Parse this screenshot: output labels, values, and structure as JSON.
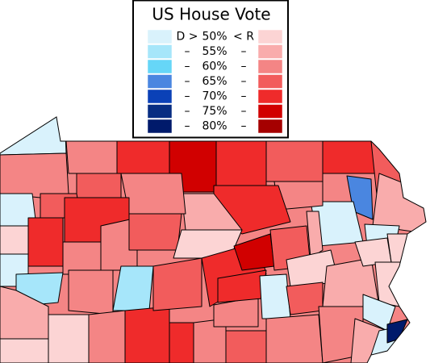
{
  "legend": {
    "title": "US House Vote",
    "rows": [
      {
        "left": "D >",
        "label": "50%",
        "right": "< R",
        "d_color": "#d9f2fc",
        "r_color": "#fcd4d4"
      },
      {
        "left": "–",
        "label": "55%",
        "right": "–",
        "d_color": "#a6e6fa",
        "r_color": "#f9acac"
      },
      {
        "left": "–",
        "label": "60%",
        "right": "–",
        "d_color": "#66d6f7",
        "r_color": "#f48585"
      },
      {
        "left": "–",
        "label": "65%",
        "right": "–",
        "d_color": "#4a86e0",
        "r_color": "#f25c5c"
      },
      {
        "left": "–",
        "label": "70%",
        "right": "–",
        "d_color": "#0b41b7",
        "r_color": "#ef2b2b"
      },
      {
        "left": "–",
        "label": "75%",
        "right": "–",
        "d_color": "#072d82",
        "r_color": "#d10000"
      },
      {
        "left": "–",
        "label": "80%",
        "right": "–",
        "d_color": "#001a6b",
        "r_color": "#a50000"
      }
    ]
  }
}
